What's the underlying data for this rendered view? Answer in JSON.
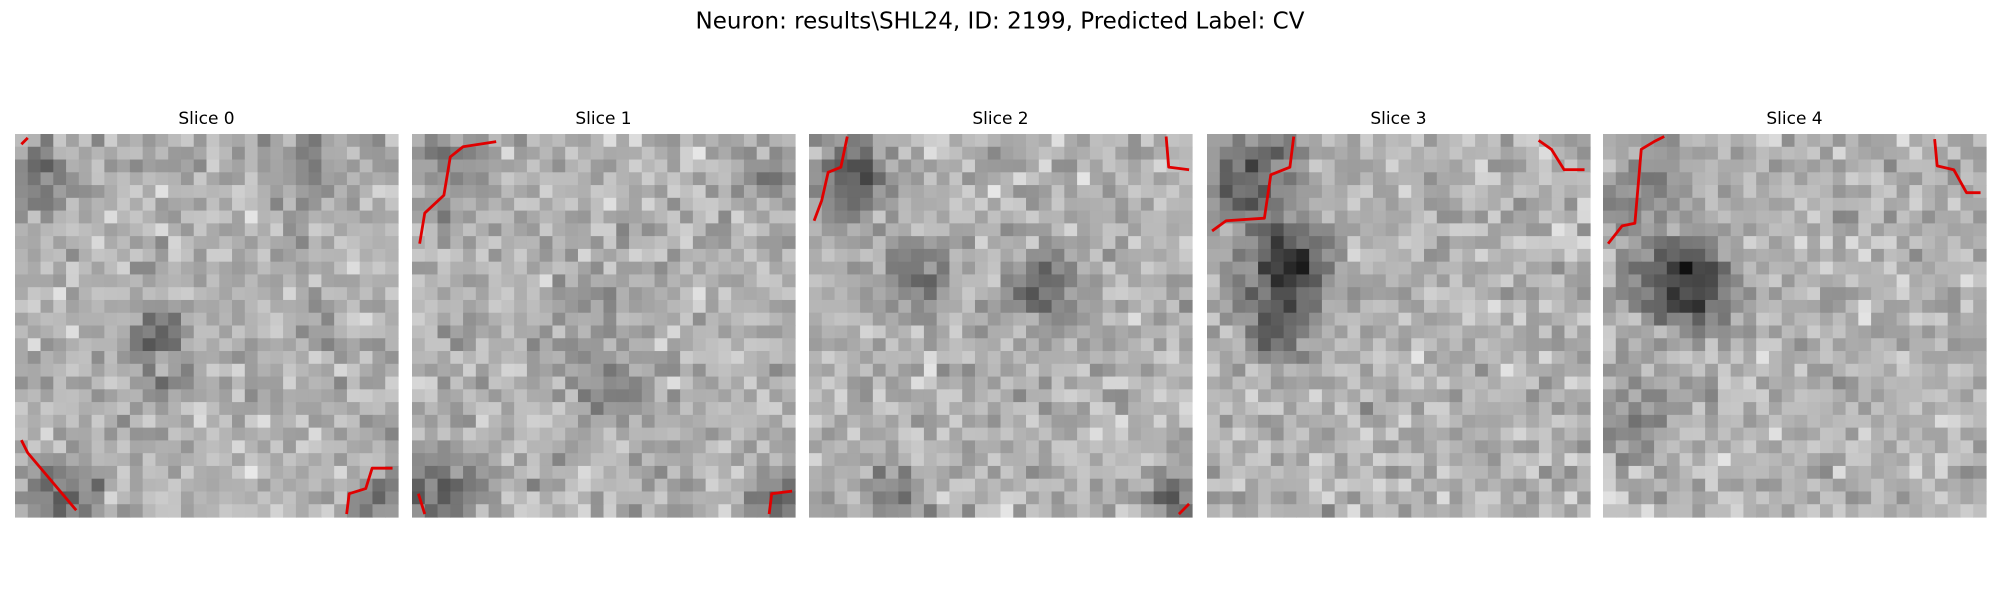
{
  "figure": {
    "title": "Neuron: results\\SHL24, ID: 2199, Predicted Label: CV",
    "panels": [
      {
        "title": "Slice 0"
      },
      {
        "title": "Slice 1"
      },
      {
        "title": "Slice 2"
      },
      {
        "title": "Slice 3"
      },
      {
        "title": "Slice 4"
      }
    ]
  }
}
